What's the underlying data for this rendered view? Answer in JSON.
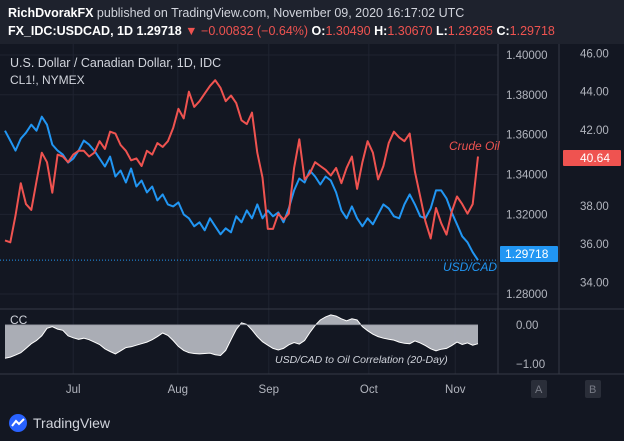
{
  "header": {
    "publisher": "RichDvorakFX",
    "published_text": " published on TradingView.com, November 09, 2020 16:17:02 UTC",
    "symbol": "FX_IDC:USDCAD, 1D",
    "last": "1.29718",
    "down_arrow": "▼",
    "change": "−0.00832 (−0.64%)",
    "o_label": "O:",
    "o_value": "1.30490",
    "h_label": "H:",
    "h_value": "1.30670",
    "l_label": "L:",
    "l_value": "1.29285",
    "c_label": "C:",
    "c_value": "1.29718"
  },
  "legend": {
    "title": "U.S. Dollar / Canadian Dollar, 1D, IDC",
    "secondary": "CL1!, NYMEX"
  },
  "annotations": {
    "crude_oil": "Crude Oil",
    "usdcad": "USD/CAD",
    "correlation": "USD/CAD to Oil Correlation (20-Day)"
  },
  "indicator": {
    "name": "CC"
  },
  "price_badges": {
    "crude": "40.64",
    "usdcad": "1.29718"
  },
  "pane_buttons": [
    "A",
    "B"
  ],
  "footer": {
    "brand": "TradingView"
  },
  "colors": {
    "background": "#131722",
    "usdcad": "#2196f3",
    "crude": "#ef5350",
    "correlation_fill": "#b2b5be",
    "text": "#d1d4dc"
  },
  "chart_data": [
    {
      "type": "line",
      "x_ticks": [
        "Jul",
        "Aug",
        "Sep",
        "Oct",
        "Nov"
      ],
      "series": [
        {
          "name": "USD/CAD",
          "axis": "left",
          "y_ticks": [
            "1.40000",
            "1.38000",
            "1.36000",
            "1.34000",
            "1.32000",
            "1.29718",
            "1.28000"
          ],
          "ylim": [
            1.2725,
            1.4055
          ],
          "values": [
            1.362,
            1.357,
            1.352,
            1.358,
            1.361,
            1.365,
            1.362,
            1.369,
            1.365,
            1.355,
            1.352,
            1.35,
            1.346,
            1.348,
            1.352,
            1.357,
            1.355,
            1.352,
            1.348,
            1.344,
            1.349,
            1.339,
            1.342,
            1.336,
            1.343,
            1.334,
            1.337,
            1.331,
            1.334,
            1.327,
            1.33,
            1.325,
            1.324,
            1.326,
            1.32,
            1.318,
            1.314,
            1.316,
            1.312,
            1.318,
            1.314,
            1.31,
            1.313,
            1.311,
            1.319,
            1.316,
            1.322,
            1.318,
            1.325,
            1.318,
            1.322,
            1.319,
            1.321,
            1.316,
            1.323,
            1.332,
            1.338,
            1.336,
            1.342,
            1.339,
            1.335,
            1.339,
            1.337,
            1.331,
            1.322,
            1.318,
            1.324,
            1.318,
            1.314,
            1.318,
            1.315,
            1.32,
            1.325,
            1.323,
            1.319,
            1.318,
            1.325,
            1.33,
            1.325,
            1.319,
            1.318,
            1.323,
            1.332,
            1.332,
            1.328,
            1.321,
            1.315,
            1.309,
            1.306,
            1.301,
            1.297
          ]
        },
        {
          "name": "Crude Oil",
          "axis": "right",
          "y_ticks": [
            "46.00",
            "44.00",
            "42.00",
            "40.64",
            "38.00",
            "36.00",
            "34.00"
          ],
          "ylim": [
            32.6,
            46.5
          ],
          "values": [
            36.2,
            36.1,
            37.5,
            39.2,
            38.1,
            37.8,
            39.3,
            40.8,
            40.3,
            38.7,
            40.7,
            40.6,
            40.3,
            40.7,
            40.9,
            40.9,
            40.6,
            40.8,
            41.4,
            41.0,
            41.9,
            41.8,
            41.2,
            40.9,
            40.4,
            40.5,
            40.1,
            40.9,
            40.7,
            41.3,
            41.1,
            41.4,
            42.1,
            43.1,
            42.6,
            44.0,
            43.2,
            43.5,
            43.9,
            44.3,
            44.6,
            44.2,
            43.5,
            43.8,
            43.4,
            42.5,
            42.3,
            42.9,
            40.8,
            39.5,
            36.8,
            36.8,
            37.6,
            37.3,
            37.6,
            40.0,
            41.5,
            39.4,
            39.7,
            40.3,
            40.1,
            39.9,
            39.6,
            40.0,
            39.2,
            40.0,
            40.6,
            38.9,
            40.3,
            41.4,
            40.8,
            39.4,
            40.1,
            41.3,
            41.9,
            41.6,
            41.4,
            41.8,
            39.8,
            38.5,
            37.2,
            36.3,
            37.9,
            37.1,
            36.5,
            37.7,
            38.5,
            38.1,
            37.6,
            38.1,
            40.6
          ]
        }
      ]
    },
    {
      "type": "area",
      "name": "CC",
      "y_ticks": [
        "0.00",
        "−1.00"
      ],
      "ylim": [
        -1.25,
        0.4
      ],
      "x_ticks": [
        "Jul",
        "Aug",
        "Sep",
        "Oct",
        "Nov"
      ],
      "values": [
        -0.85,
        -0.82,
        -0.77,
        -0.71,
        -0.6,
        -0.48,
        -0.4,
        -0.28,
        -0.09,
        -0.05,
        -0.11,
        -0.14,
        -0.28,
        -0.33,
        -0.37,
        -0.34,
        -0.38,
        -0.44,
        -0.5,
        -0.61,
        -0.68,
        -0.74,
        -0.66,
        -0.58,
        -0.56,
        -0.52,
        -0.48,
        -0.44,
        -0.38,
        -0.3,
        -0.21,
        -0.27,
        -0.4,
        -0.55,
        -0.65,
        -0.71,
        -0.73,
        -0.74,
        -0.73,
        -0.72,
        -0.76,
        -0.78,
        -0.65,
        -0.38,
        -0.12,
        0.05,
        0.01,
        -0.13,
        -0.3,
        -0.43,
        -0.52,
        -0.6,
        -0.64,
        -0.6,
        -0.51,
        -0.45,
        -0.49,
        -0.4,
        -0.2,
        -0.02,
        0.12,
        0.2,
        0.25,
        0.22,
        0.15,
        0.1,
        0.15,
        0.12,
        -0.05,
        -0.15,
        -0.24,
        -0.3,
        -0.34,
        -0.37,
        -0.39,
        -0.44,
        -0.47,
        -0.48,
        -0.41,
        -0.46,
        -0.53,
        -0.61,
        -0.66,
        -0.62,
        -0.6,
        -0.53,
        -0.44,
        -0.5,
        -0.46,
        -0.52,
        -0.48
      ]
    }
  ]
}
